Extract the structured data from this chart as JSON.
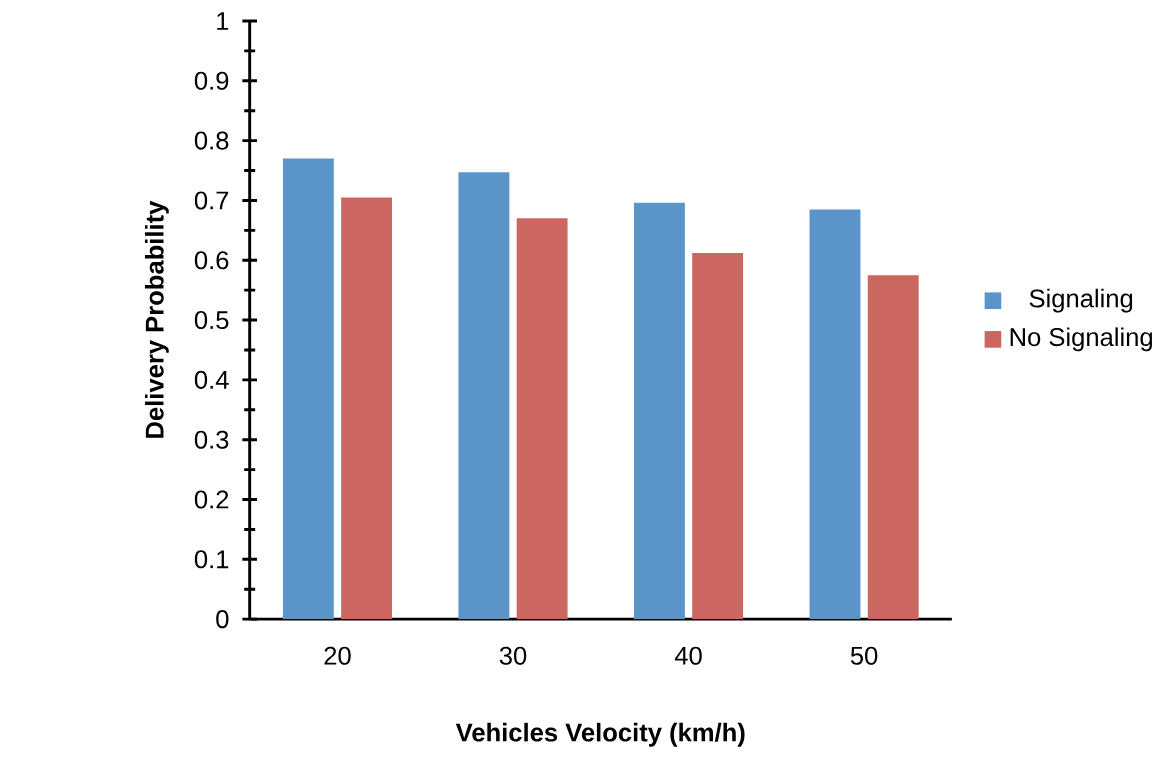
{
  "chart_data": {
    "type": "bar",
    "xlabel": "Vehicles Velocity (km/h)",
    "ylabel": "Delivery Probability",
    "categories": [
      "20",
      "30",
      "40",
      "50"
    ],
    "series": [
      {
        "name": "Signaling",
        "color": "#5b94c9",
        "values": [
          0.77,
          0.747,
          0.696,
          0.685
        ]
      },
      {
        "name": "No Signaling",
        "color": "#cc6660",
        "values": [
          0.705,
          0.67,
          0.612,
          0.575
        ]
      }
    ],
    "ylim": [
      0,
      1
    ],
    "yticks": [
      0,
      0.1,
      0.2,
      0.3,
      0.4,
      0.5,
      0.6,
      0.7,
      0.8,
      0.9,
      1
    ],
    "legend": "right",
    "grid": false
  }
}
